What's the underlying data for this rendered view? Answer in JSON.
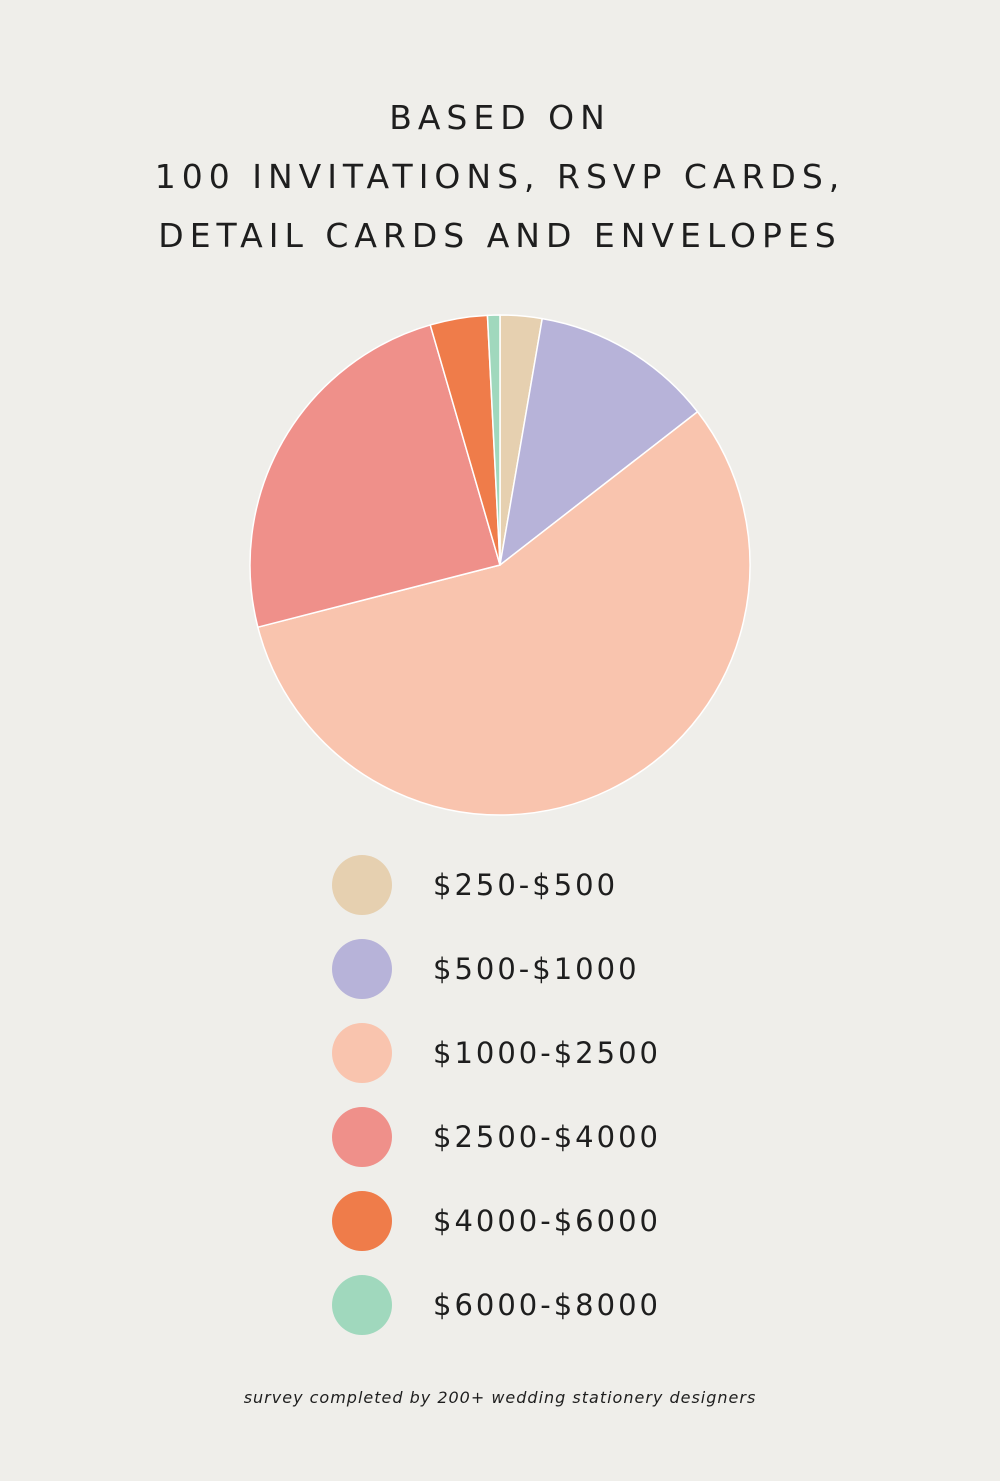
{
  "chart_data": {
    "type": "pie",
    "title": [
      "BASED ON",
      "100 INVITATIONS, RSVP CARDS,",
      "DETAIL CARDS AND ENVELOPES"
    ],
    "unit": "%",
    "slices": [
      {
        "label": "$250-$500",
        "value": 2.7,
        "color": "#e6d0b0"
      },
      {
        "label": "$500-$1000",
        "value": 11.8,
        "color": "#b7b3d9"
      },
      {
        "label": "$1000-$2500",
        "value": 56.5,
        "color": "#f9c4ae"
      },
      {
        "label": "$2500-$4000",
        "value": 24.5,
        "color": "#ef908a"
      },
      {
        "label": "$4000-$6000",
        "value": 3.7,
        "color": "#ef7c4a"
      },
      {
        "label": "$6000-$8000",
        "value": 0.8,
        "color": "#a0d8bd"
      }
    ],
    "start": "12 o'clock",
    "direction": "clockwise",
    "legend": "bottom-center",
    "footnote": "survey completed by 200+ wedding stationery designers"
  }
}
